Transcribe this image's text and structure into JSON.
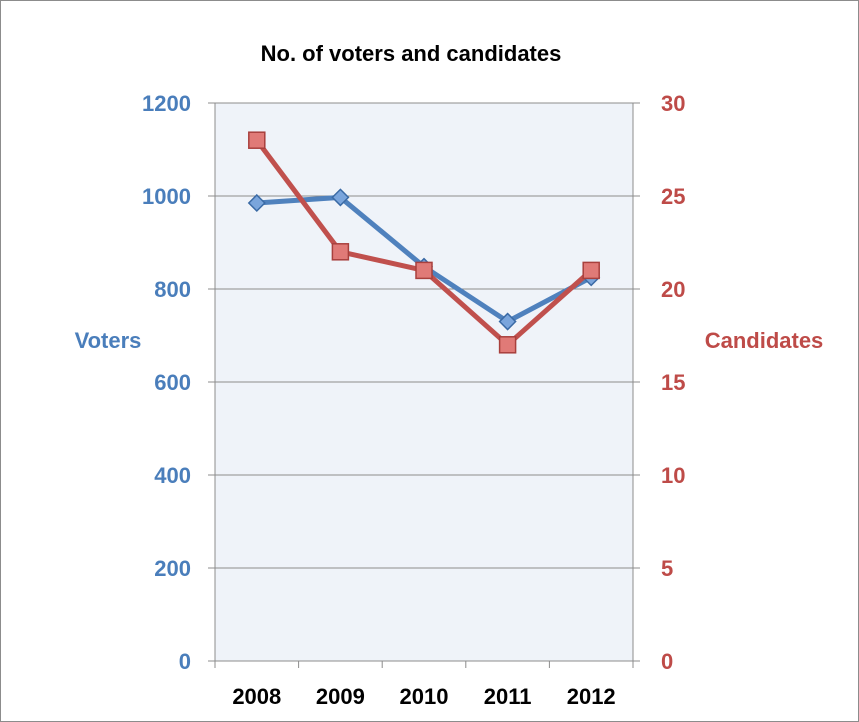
{
  "chart_data": {
    "type": "line",
    "title": "No. of voters and candidates",
    "categories": [
      "2008",
      "2009",
      "2010",
      "2011",
      "2012"
    ],
    "y_left": {
      "label": "Voters",
      "range": [
        0,
        1200
      ],
      "ticks": [
        "0",
        "200",
        "400",
        "600",
        "800",
        "1000",
        "1200"
      ],
      "color": "#4a7ebb"
    },
    "y_right": {
      "label": "Candidates",
      "range": [
        0,
        30
      ],
      "ticks": [
        "0",
        "5",
        "10",
        "15",
        "20",
        "25",
        "30"
      ],
      "color": "#be4b48"
    },
    "series": [
      {
        "name": "Voters",
        "axis": "left",
        "values": [
          985,
          997,
          848,
          730,
          825
        ],
        "color": "#4f81bd",
        "marker": "diamond"
      },
      {
        "name": "Candidates",
        "axis": "right",
        "values": [
          28,
          22,
          21,
          17,
          21
        ],
        "color": "#c0504d",
        "marker": "square"
      }
    ],
    "grid": true,
    "legend": "none",
    "plot_background": "#eff3f9"
  }
}
